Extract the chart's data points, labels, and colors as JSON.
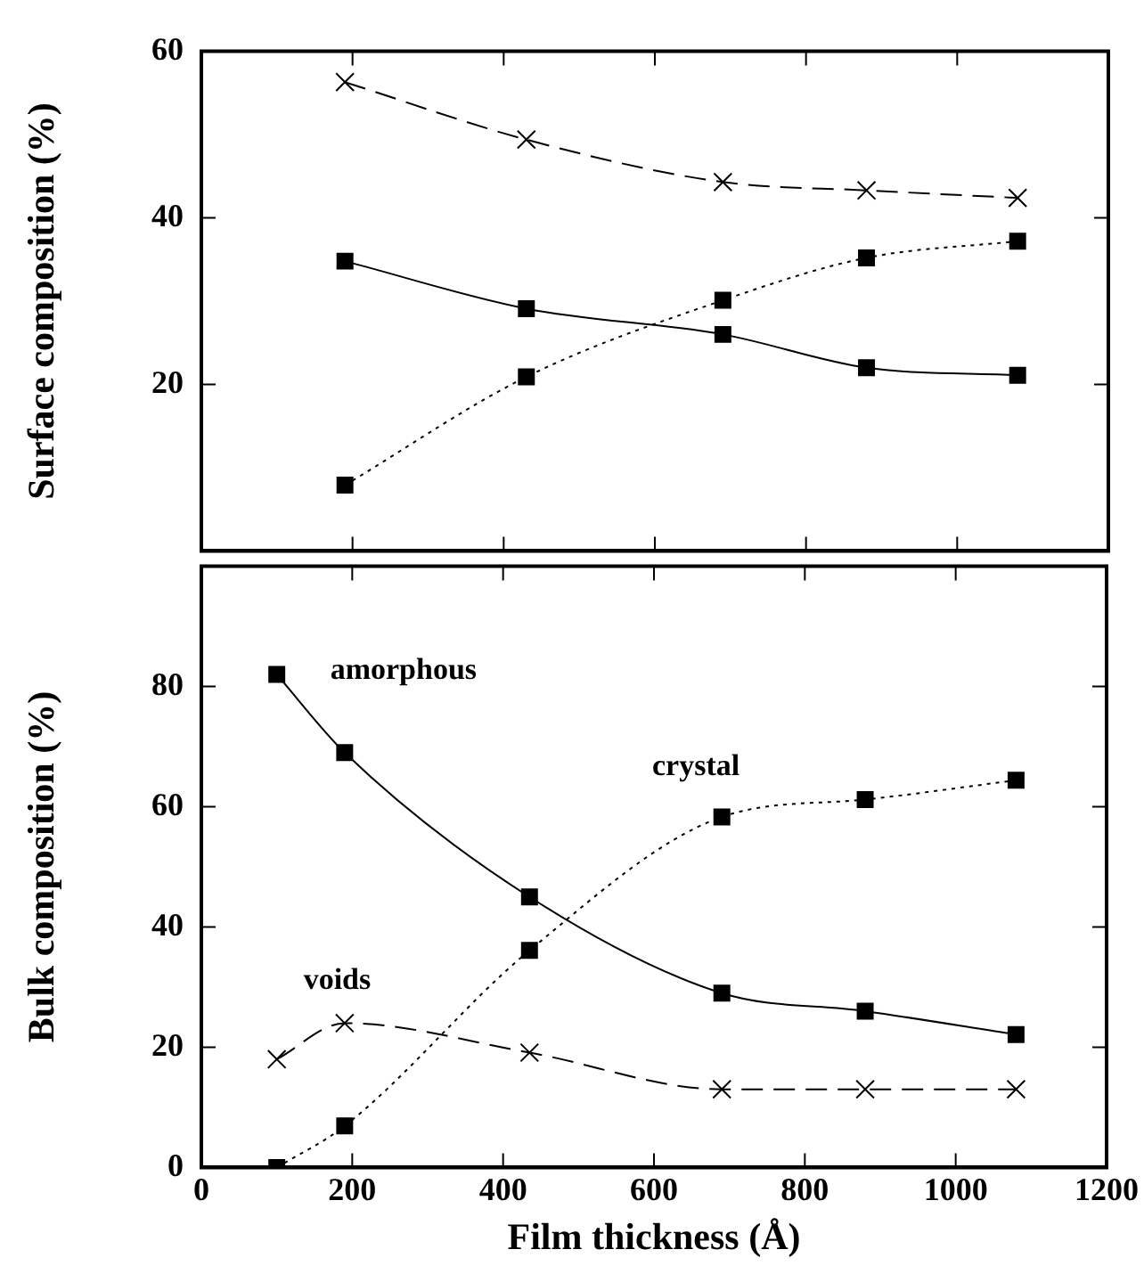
{
  "chart_data": [
    {
      "type": "line",
      "ylabel": "Surface composition (%)",
      "xlim": [
        0,
        1200
      ],
      "xticks": [
        0,
        200,
        400,
        600,
        800,
        1000,
        1200
      ],
      "ylim": [
        0,
        60
      ],
      "yticks": [
        {
          "value": 0,
          "label": null
        },
        20,
        40,
        60
      ],
      "tick_labels": "y",
      "grid": false,
      "legend": false,
      "series": [
        {
          "color": "#000000",
          "marker": "cross",
          "line_style": "dashed",
          "x": [
            190,
            430,
            690,
            880,
            1080
          ],
          "values": [
            56.3,
            49.4,
            44.3,
            43.3,
            42.4
          ]
        },
        {
          "color": "#000000",
          "marker": "square",
          "line_style": "solid",
          "x": [
            190,
            430,
            690,
            880,
            1080
          ],
          "values": [
            34.8,
            29.1,
            26.0,
            22.0,
            21.1
          ]
        },
        {
          "color": "#000000",
          "marker": "square",
          "line_style": "dotted",
          "x": [
            190,
            430,
            690,
            880,
            1080
          ],
          "values": [
            7.9,
            20.9,
            30.1,
            35.2,
            37.2
          ]
        }
      ]
    },
    {
      "type": "line",
      "xlabel": "Film thickness (Å)",
      "ylabel": "Bulk composition (%)",
      "xlim": [
        0,
        1200
      ],
      "xticks": [
        0,
        200,
        400,
        600,
        800,
        1000,
        1200
      ],
      "ylim": [
        0,
        100
      ],
      "yticks": [
        0,
        20,
        40,
        60,
        80
      ],
      "grid": false,
      "legend": false,
      "series": [
        {
          "name": "amorphous",
          "color": "#000000",
          "marker": "square",
          "line_style": "solid",
          "x": [
            100,
            190,
            435,
            690,
            880,
            1080
          ],
          "values": [
            82.0,
            69.0,
            45.0,
            29.0,
            26.0,
            22.1
          ]
        },
        {
          "name": "crystal",
          "color": "#000000",
          "marker": "square",
          "line_style": "dotted",
          "x": [
            100,
            190,
            435,
            690,
            880,
            1080
          ],
          "values": [
            0,
            6.9,
            36.1,
            58.3,
            61.2,
            64.4
          ]
        },
        {
          "name": "voids",
          "color": "#000000",
          "marker": "cross",
          "line_style": "dashed",
          "x": [
            100,
            190,
            435,
            690,
            880,
            1080
          ],
          "values": [
            18.0,
            24.0,
            19.1,
            13,
            13,
            13
          ]
        }
      ]
    }
  ]
}
